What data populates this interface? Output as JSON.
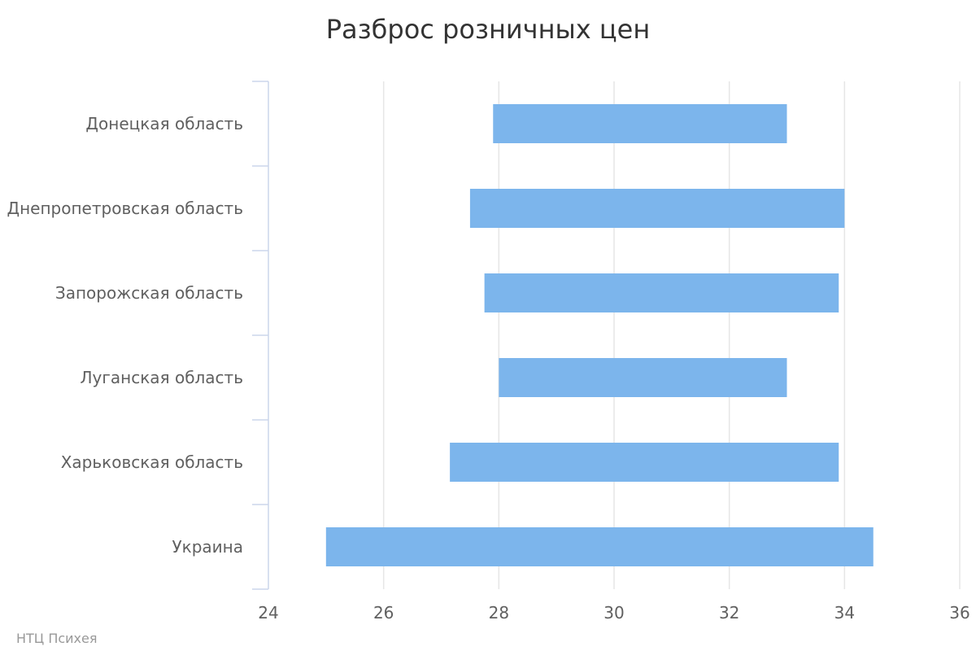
{
  "chart_data": {
    "type": "bar",
    "orientation": "horizontal",
    "range_bars": true,
    "title": "Разброс розничных цен",
    "categories": [
      "Донецкая область",
      "Днепропетровская область",
      "Запорожская область",
      "Луганская область",
      "Харьковская область",
      "Украина"
    ],
    "series": [
      {
        "low": [
          27.9,
          27.5,
          27.75,
          28.0,
          27.15,
          25.0
        ],
        "high": [
          33.0,
          34.0,
          33.9,
          33.0,
          33.9,
          34.5
        ]
      }
    ],
    "xlim": [
      24,
      36
    ],
    "xticks": [
      "24",
      "26",
      "28",
      "30",
      "32",
      "34",
      "36"
    ],
    "xlabel": "",
    "ylabel": "",
    "grid": true,
    "legend": "none",
    "bar_color": "#7cb5ec",
    "grid_color": "#e6e6e6",
    "axis_color": "#ccd6eb"
  },
  "credits": "НТЦ Психея"
}
